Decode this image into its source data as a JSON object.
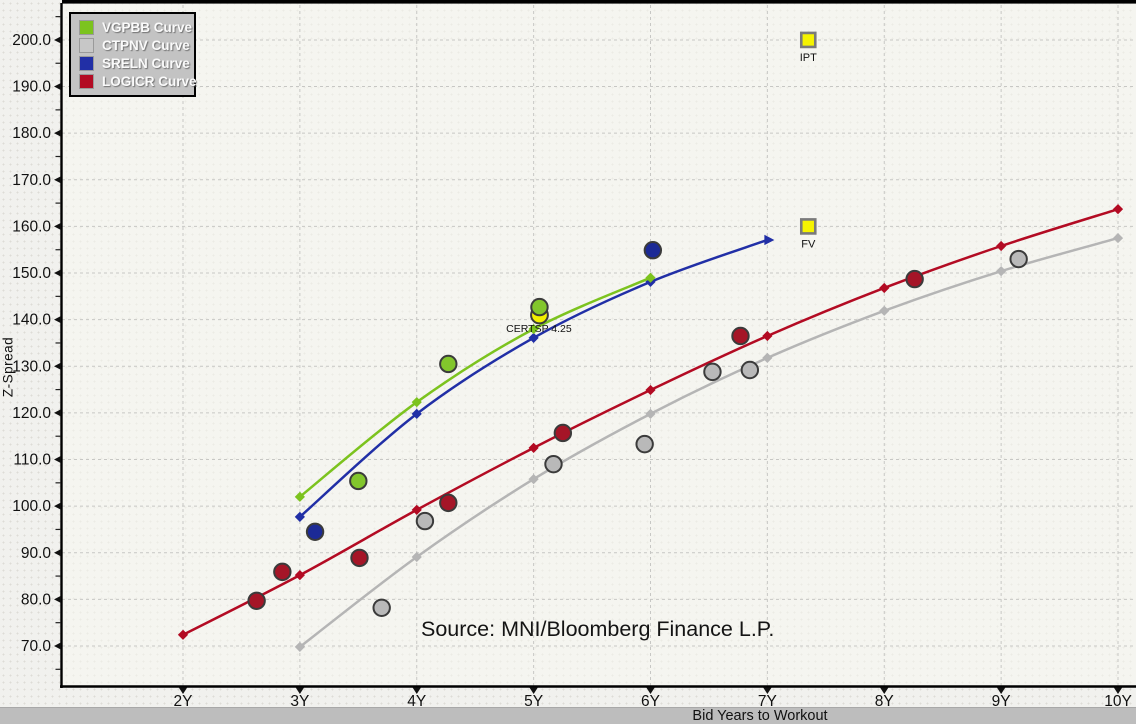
{
  "legend": {
    "items": [
      {
        "id": "vgpbb",
        "label": "VGPBB Curve",
        "color": "#7cc31e"
      },
      {
        "id": "ctpnv",
        "label": "CTPNV Curve",
        "color": "#c7c7c7"
      },
      {
        "id": "sreln",
        "label": "SRELN Curve",
        "color": "#212fa6"
      },
      {
        "id": "logicr",
        "label": "LOGICR Curve",
        "color": "#b30b23"
      }
    ]
  },
  "source_note": "Source: MNI/Bloomberg Finance L.P.",
  "chart_data": {
    "type": "line",
    "title": "",
    "xlabel": "Bid Years to Workout",
    "ylabel": "Z-Spread",
    "grid": true,
    "legend_position": "top-left",
    "x_ticks": [
      {
        "label": "2Y",
        "value": 2
      },
      {
        "label": "3Y",
        "value": 3
      },
      {
        "label": "4Y",
        "value": 4
      },
      {
        "label": "5Y",
        "value": 5
      },
      {
        "label": "6Y",
        "value": 6
      },
      {
        "label": "7Y",
        "value": 7
      },
      {
        "label": "8Y",
        "value": 8
      },
      {
        "label": "9Y",
        "value": 9
      },
      {
        "label": "10Y",
        "value": 10
      }
    ],
    "y_ticks": [
      {
        "label": "70.0",
        "value": 70
      },
      {
        "label": "80.0",
        "value": 80
      },
      {
        "label": "90.0",
        "value": 90
      },
      {
        "label": "100.0",
        "value": 100
      },
      {
        "label": "110.0",
        "value": 110
      },
      {
        "label": "120.0",
        "value": 120
      },
      {
        "label": "130.0",
        "value": 130
      },
      {
        "label": "140.0",
        "value": 140
      },
      {
        "label": "150.0",
        "value": 150
      },
      {
        "label": "160.0",
        "value": 160
      },
      {
        "label": "170.0",
        "value": 170
      },
      {
        "label": "180.0",
        "value": 180
      },
      {
        "label": "190.0",
        "value": 190
      },
      {
        "label": "200.0",
        "value": 200
      }
    ],
    "y_minor_ticks": [
      65,
      75,
      85,
      95,
      105,
      115,
      125,
      135,
      145,
      155,
      165,
      175,
      185,
      195,
      205
    ],
    "xlim": [
      0.95,
      10.15
    ],
    "ylim": [
      61,
      207
    ],
    "series": [
      {
        "name": "CTPNV Curve",
        "color": "#b5b5b5",
        "dot_fill": "#b9b9b9",
        "line": {
          "x": [
            3,
            4,
            5,
            6,
            7,
            8,
            9,
            10
          ],
          "y": [
            69.8,
            89.1,
            105.8,
            119.8,
            131.8,
            141.9,
            150.4,
            157.5
          ]
        },
        "scatter": [
          [
            3.7,
            78.2
          ],
          [
            4.07,
            96.8
          ],
          [
            5.17,
            109.0
          ],
          [
            5.95,
            113.3
          ],
          [
            6.53,
            128.8
          ],
          [
            6.85,
            129.2
          ],
          [
            9.15,
            153.0
          ]
        ],
        "arrow_end": false
      },
      {
        "name": "LOGICR Curve",
        "color": "#b30b23",
        "dot_fill": "#a51527",
        "line": {
          "x": [
            2,
            3,
            4,
            5,
            6,
            7,
            8,
            9,
            10
          ],
          "y": [
            72.4,
            85.2,
            99.2,
            112.5,
            124.9,
            136.5,
            146.8,
            155.8,
            163.7
          ]
        },
        "scatter": [
          [
            2.63,
            79.7
          ],
          [
            2.85,
            85.9
          ],
          [
            3.51,
            88.9
          ],
          [
            4.27,
            100.7
          ],
          [
            5.25,
            115.7
          ],
          [
            6.77,
            136.5
          ],
          [
            8.26,
            148.7
          ]
        ],
        "arrow_end": false
      },
      {
        "name": "SRELN Curve",
        "color": "#212fa6",
        "dot_fill": "#1c2a96",
        "line": {
          "x": [
            3,
            4,
            5,
            6,
            7
          ],
          "y": [
            97.7,
            119.8,
            136.1,
            148.1,
            157.1
          ]
        },
        "scatter": [
          [
            3.13,
            94.5
          ],
          [
            6.02,
            154.9
          ]
        ],
        "arrow_end": true
      },
      {
        "name": "VGPBB Curve",
        "color": "#7cc31e",
        "dot_fill": "#82c62c",
        "line": {
          "x": [
            3,
            4,
            5,
            6
          ],
          "y": [
            102.0,
            122.3,
            138.0,
            149.0
          ]
        },
        "scatter": [
          [
            3.5,
            105.4
          ],
          [
            4.27,
            130.5
          ],
          [
            5.05,
            142.7
          ]
        ],
        "arrow_end": false
      }
    ],
    "special_points": [
      {
        "label": "IPT",
        "x": 7.35,
        "y": 200.0,
        "marker": "square",
        "fill": "#f5f300",
        "border": "#7a7a7a"
      },
      {
        "label": "FV",
        "x": 7.35,
        "y": 160.0,
        "marker": "square",
        "fill": "#f5f300",
        "border": "#7a7a7a"
      },
      {
        "label": "CERTSP 4.25",
        "x": 5.05,
        "y": 141.0,
        "marker": "circle",
        "fill": "#f2ef00",
        "border": "#3b3b3b"
      }
    ]
  }
}
